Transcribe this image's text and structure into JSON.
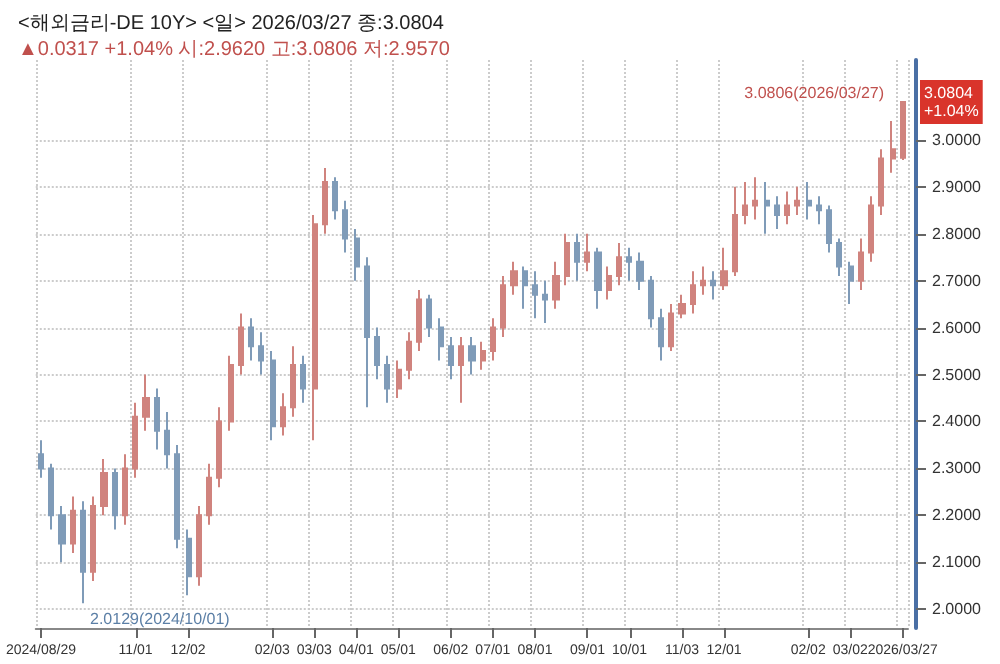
{
  "chart_data": {
    "type": "candlestick",
    "title": "<해외금리-DE 10Y> <일> 2026/03/27 종:3.0804",
    "subtitle": "▲0.0317 +1.04% 시:2.9620 고:3.0806 저:2.9570",
    "categories": [
      "2024/08/29",
      null,
      null,
      null,
      null,
      null,
      null,
      null,
      null,
      "11/01",
      null,
      null,
      null,
      null,
      "12/02",
      null,
      null,
      null,
      null,
      null,
      null,
      null,
      "02/03",
      null,
      null,
      null,
      "03/03",
      null,
      null,
      null,
      "04/01",
      null,
      null,
      null,
      "05/01",
      null,
      null,
      null,
      null,
      "06/02",
      null,
      null,
      null,
      "07/01",
      null,
      null,
      null,
      "08/01",
      null,
      null,
      null,
      null,
      "09/01",
      null,
      null,
      null,
      "10/01",
      null,
      null,
      null,
      null,
      "11/03",
      null,
      null,
      null,
      "12/01",
      null,
      null,
      null,
      null,
      null,
      null,
      null,
      "02/02",
      null,
      null,
      null,
      "03/02",
      null,
      null,
      null,
      null,
      "2026/03/27"
    ],
    "ohlc": [
      [
        2.33,
        2.36,
        2.28,
        2.3
      ],
      [
        2.3,
        2.31,
        2.17,
        2.2
      ],
      [
        2.2,
        2.22,
        2.1,
        2.14
      ],
      [
        2.14,
        2.24,
        2.12,
        2.21
      ],
      [
        2.21,
        2.23,
        2.0129,
        2.08
      ],
      [
        2.08,
        2.24,
        2.06,
        2.22
      ],
      [
        2.22,
        2.32,
        2.2,
        2.29
      ],
      [
        2.29,
        2.3,
        2.17,
        2.2
      ],
      [
        2.2,
        2.33,
        2.18,
        2.3
      ],
      [
        2.3,
        2.44,
        2.28,
        2.41
      ],
      [
        2.41,
        2.5,
        2.38,
        2.45
      ],
      [
        2.45,
        2.47,
        2.34,
        2.38
      ],
      [
        2.38,
        2.42,
        2.3,
        2.33
      ],
      [
        2.33,
        2.35,
        2.13,
        2.15
      ],
      [
        2.15,
        2.17,
        2.03,
        2.07
      ],
      [
        2.07,
        2.22,
        2.05,
        2.2
      ],
      [
        2.2,
        2.31,
        2.18,
        2.28
      ],
      [
        2.28,
        2.43,
        2.26,
        2.4
      ],
      [
        2.4,
        2.54,
        2.38,
        2.52
      ],
      [
        2.52,
        2.63,
        2.5,
        2.6
      ],
      [
        2.6,
        2.62,
        2.53,
        2.56
      ],
      [
        2.56,
        2.59,
        2.5,
        2.53
      ],
      [
        2.53,
        2.55,
        2.36,
        2.39
      ],
      [
        2.39,
        2.46,
        2.37,
        2.43
      ],
      [
        2.43,
        2.56,
        2.41,
        2.52
      ],
      [
        2.52,
        2.54,
        2.44,
        2.47
      ],
      [
        2.47,
        2.84,
        2.36,
        2.82
      ],
      [
        2.82,
        2.94,
        2.8,
        2.91
      ],
      [
        2.91,
        2.92,
        2.83,
        2.85
      ],
      [
        2.85,
        2.87,
        2.76,
        2.79
      ],
      [
        2.79,
        2.81,
        2.7,
        2.73
      ],
      [
        2.73,
        2.75,
        2.43,
        2.58
      ],
      [
        2.58,
        2.6,
        2.49,
        2.52
      ],
      [
        2.52,
        2.54,
        2.44,
        2.47
      ],
      [
        2.47,
        2.53,
        2.45,
        2.51
      ],
      [
        2.51,
        2.59,
        2.49,
        2.57
      ],
      [
        2.57,
        2.68,
        2.55,
        2.66
      ],
      [
        2.66,
        2.67,
        2.58,
        2.6
      ],
      [
        2.6,
        2.62,
        2.53,
        2.56
      ],
      [
        2.56,
        2.58,
        2.49,
        2.52
      ],
      [
        2.52,
        2.58,
        2.44,
        2.56
      ],
      [
        2.56,
        2.58,
        2.5,
        2.53
      ],
      [
        2.53,
        2.57,
        2.51,
        2.55
      ],
      [
        2.55,
        2.62,
        2.53,
        2.6
      ],
      [
        2.6,
        2.71,
        2.58,
        2.69
      ],
      [
        2.69,
        2.74,
        2.67,
        2.72
      ],
      [
        2.72,
        2.73,
        2.64,
        2.69
      ],
      [
        2.69,
        2.72,
        2.62,
        2.67
      ],
      [
        2.67,
        2.7,
        2.61,
        2.66
      ],
      [
        2.66,
        2.74,
        2.64,
        2.71
      ],
      [
        2.71,
        2.8,
        2.69,
        2.78
      ],
      [
        2.78,
        2.8,
        2.7,
        2.74
      ],
      [
        2.74,
        2.8,
        2.72,
        2.76
      ],
      [
        2.76,
        2.77,
        2.64,
        2.68
      ],
      [
        2.68,
        2.73,
        2.66,
        2.71
      ],
      [
        2.71,
        2.78,
        2.69,
        2.75
      ],
      [
        2.75,
        2.77,
        2.7,
        2.74
      ],
      [
        2.74,
        2.76,
        2.68,
        2.7
      ],
      [
        2.7,
        2.71,
        2.6,
        2.62
      ],
      [
        2.62,
        2.64,
        2.53,
        2.56
      ],
      [
        2.56,
        2.65,
        2.55,
        2.63
      ],
      [
        2.63,
        2.67,
        2.62,
        2.65
      ],
      [
        2.65,
        2.72,
        2.63,
        2.69
      ],
      [
        2.69,
        2.73,
        2.67,
        2.7
      ],
      [
        2.7,
        2.72,
        2.66,
        2.69
      ],
      [
        2.69,
        2.77,
        2.68,
        2.72
      ],
      [
        2.72,
        2.9,
        2.71,
        2.84
      ],
      [
        2.84,
        2.91,
        2.82,
        2.86
      ],
      [
        2.86,
        2.92,
        2.83,
        2.87
      ],
      [
        2.87,
        2.91,
        2.8,
        2.86
      ],
      [
        2.86,
        2.88,
        2.81,
        2.84
      ],
      [
        2.84,
        2.89,
        2.82,
        2.86
      ],
      [
        2.86,
        2.9,
        2.84,
        2.87
      ],
      [
        2.87,
        2.91,
        2.83,
        2.86
      ],
      [
        2.86,
        2.88,
        2.82,
        2.85
      ],
      [
        2.85,
        2.86,
        2.76,
        2.78
      ],
      [
        2.78,
        2.79,
        2.71,
        2.73
      ],
      [
        2.73,
        2.74,
        2.65,
        2.7
      ],
      [
        2.7,
        2.79,
        2.68,
        2.76
      ],
      [
        2.76,
        2.88,
        2.74,
        2.86
      ],
      [
        2.86,
        2.98,
        2.84,
        2.96
      ],
      [
        2.96,
        3.04,
        2.93,
        2.98
      ],
      [
        2.962,
        3.0806,
        2.957,
        3.0804
      ]
    ],
    "ylim": [
      1.96,
      3.17
    ],
    "yticks": [
      {
        "value": 2.0,
        "label": "2.0000"
      },
      {
        "value": 2.1,
        "label": "2.1000"
      },
      {
        "value": 2.2,
        "label": "2.2000"
      },
      {
        "value": 2.3,
        "label": "2.3000"
      },
      {
        "value": 2.4,
        "label": "2.4000"
      },
      {
        "value": 2.5,
        "label": "2.5000"
      },
      {
        "value": 2.6,
        "label": "2.6000"
      },
      {
        "value": 2.7,
        "label": "2.7000"
      },
      {
        "value": 2.8,
        "label": "2.8000"
      },
      {
        "value": 2.9,
        "label": "2.9000"
      },
      {
        "value": 3.0,
        "label": "3.0000"
      }
    ],
    "annotations": [
      "3.0806(2026/03/27)",
      "2.0129(2024/10/01)",
      "3.0804\n+1.04%"
    ],
    "grid": true
  }
}
